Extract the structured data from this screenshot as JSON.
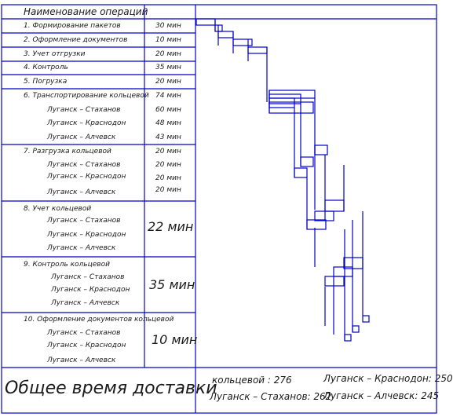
{
  "table": {
    "header": {
      "operation": "Наименование операций",
      "time": ""
    },
    "rows": [
      {
        "name": "1. Формирование пакетов",
        "time": "30 мин"
      },
      {
        "name": "2. Оформление документов",
        "time": "10 мин"
      },
      {
        "name": "3. Учет отгрузки",
        "time": "20 мин"
      },
      {
        "name": "4. Контроль",
        "time": "35 мин"
      },
      {
        "name": "5. Погрузка",
        "time": "20 мин"
      }
    ],
    "groups": [
      {
        "title": "6. Транспортирование кольцевой",
        "title_time": "74 мин",
        "routes": [
          {
            "name": "Луганск – Стаханов",
            "time": "60 мин"
          },
          {
            "name": "Луганск – Краснодон",
            "time": "48 мин"
          },
          {
            "name": "Луганск – Алчевск",
            "time": "43 мин"
          }
        ]
      },
      {
        "title": "7. Разгрузка кольцевой",
        "title_time": "20 мин",
        "routes": [
          {
            "name": "Луганск – Стаханов",
            "time": "20 мин"
          },
          {
            "name": "Луганск – Краснодон",
            "time": "20 мин"
          },
          {
            "name": "Луганск – Алчевск",
            "time": "20 мин"
          }
        ]
      },
      {
        "title": "8. Учет кольцевой",
        "merged_time": "22 мин",
        "routes": [
          {
            "name": "Луганск – Стаханов"
          },
          {
            "name": "Луганск – Краснодон"
          },
          {
            "name": "Луганск – Алчевск"
          }
        ]
      },
      {
        "title": "9. Контроль кольцевой",
        "merged_time": "35 мин",
        "routes": [
          {
            "name": "Луганск – Стаханов"
          },
          {
            "name": "Луганск – Краснодон"
          },
          {
            "name": "Луганск – Алчевск"
          }
        ]
      },
      {
        "title": "10. Оформление документов кольцевой",
        "merged_time": "10 мин",
        "routes": [
          {
            "name": "Луганск – Стаханов"
          },
          {
            "name": "Луганск – Краснодон"
          },
          {
            "name": "Луганск – Алчевск"
          }
        ]
      }
    ]
  },
  "footer": {
    "total_label": "Общее время доставки",
    "ring": "кольцевой : 276",
    "stakhanov": "Луганск – Стаханов: 262",
    "krasnodon": "Луганск – Краснодон: 250",
    "alchevsk": "Луганск – Алчевск: 245"
  },
  "colors": {
    "lines": "#0000cc",
    "text": "#1a1a1a"
  }
}
